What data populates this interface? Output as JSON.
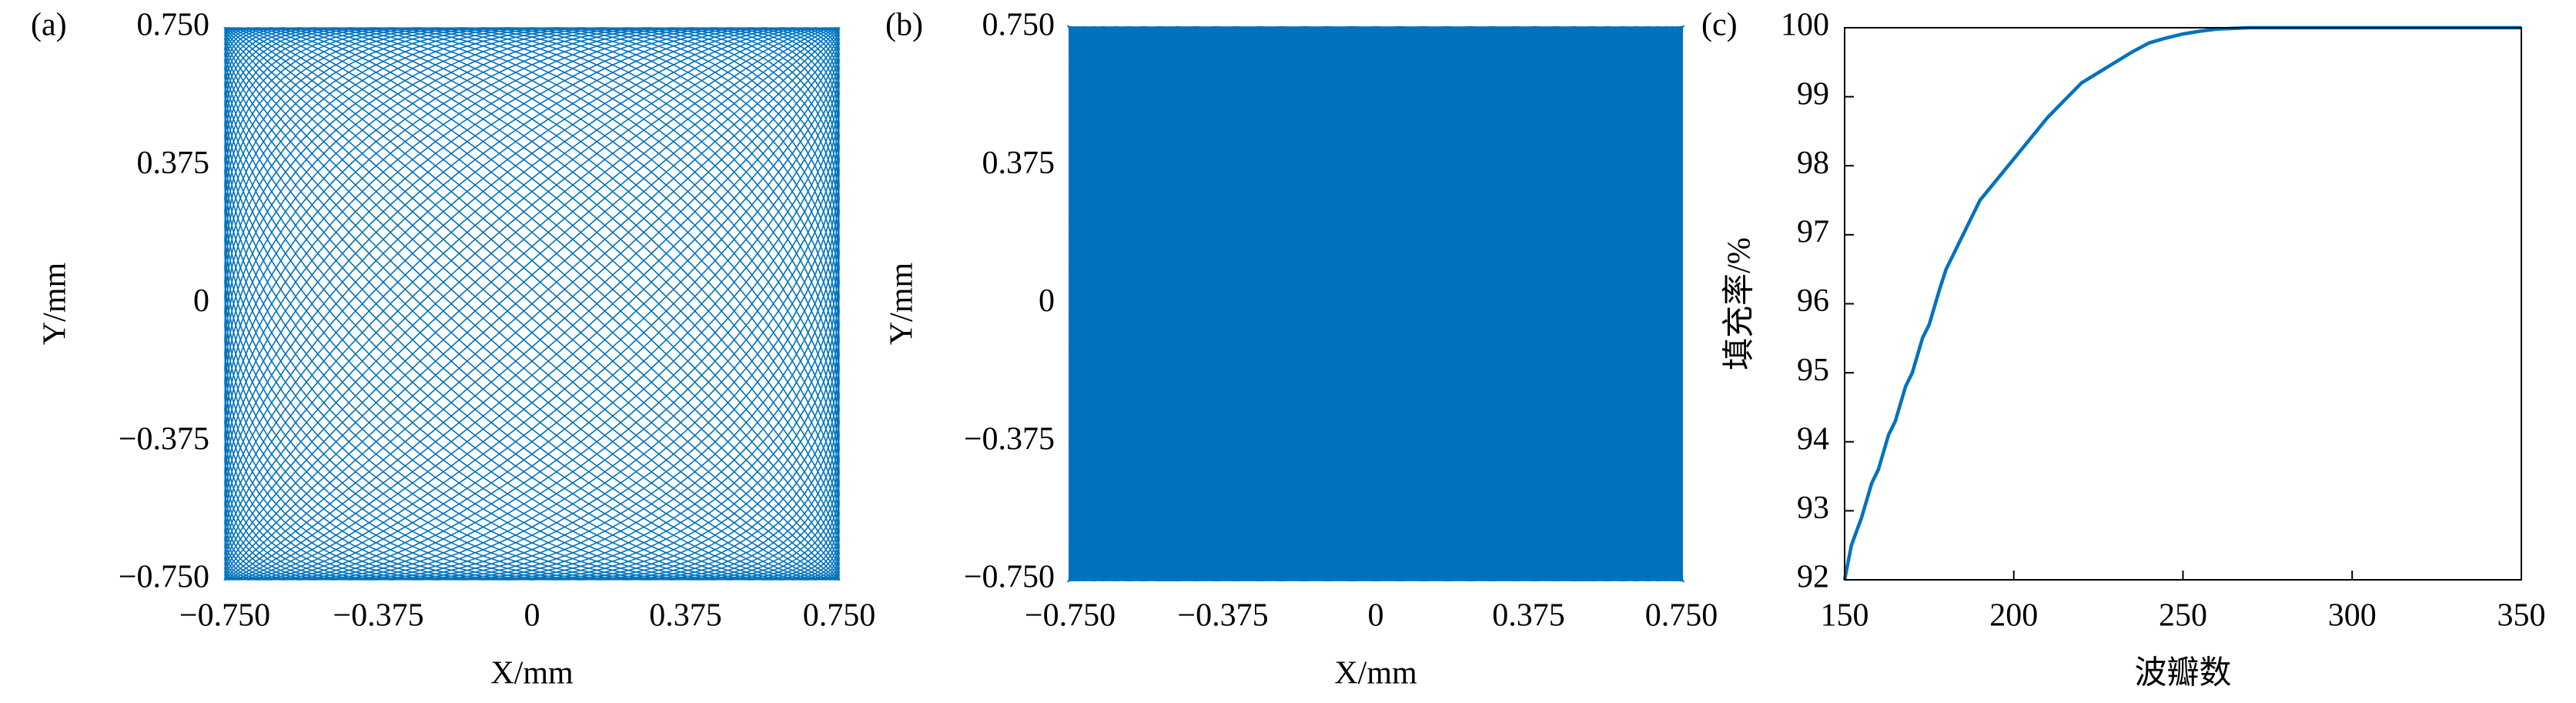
{
  "chart_data": [
    {
      "type": "lissajous",
      "panel_label": "(a)",
      "x_label": "X/mm",
      "y_label": "Y/mm",
      "x_frequency": 60,
      "y_frequency": 59,
      "amplitude": 0.75,
      "color": "#0072bd",
      "xlim": [
        -0.75,
        0.75
      ],
      "ylim": [
        -0.75,
        0.75
      ],
      "xticks": [
        {
          "value": -0.75,
          "label": "−0.750"
        },
        {
          "value": -0.375,
          "label": "−0.375"
        },
        0,
        0.375,
        {
          "value": 0.75,
          "label": "0.750"
        }
      ],
      "yticks": [
        {
          "value": -0.75,
          "label": "−0.750"
        },
        {
          "value": -0.375,
          "label": "−0.375"
        },
        0,
        0.375,
        {
          "value": 0.75,
          "label": "0.750"
        }
      ]
    },
    {
      "type": "lissajous",
      "panel_label": "(b)",
      "x_label": "X/mm",
      "y_label": "Y/mm",
      "x_frequency": 300,
      "y_frequency": 299,
      "amplitude": 0.75,
      "color": "#0072bd",
      "xlim": [
        -0.75,
        0.75
      ],
      "ylim": [
        -0.75,
        0.75
      ],
      "xticks": [
        {
          "value": -0.75,
          "label": "−0.750"
        },
        {
          "value": -0.375,
          "label": "−0.375"
        },
        0,
        0.375,
        {
          "value": 0.75,
          "label": "0.750"
        }
      ],
      "yticks": [
        {
          "value": -0.75,
          "label": "−0.750"
        },
        {
          "value": -0.375,
          "label": "−0.375"
        },
        0,
        0.375,
        {
          "value": 0.75,
          "label": "0.750"
        }
      ]
    },
    {
      "type": "line",
      "panel_label": "(c)",
      "x_label": "波瓣数",
      "y_label": "填充率/%",
      "color": "#0072bd",
      "x": [
        150,
        152,
        155,
        158,
        160,
        163,
        165,
        168,
        170,
        173,
        175,
        178,
        180,
        185,
        190,
        195,
        200,
        205,
        210,
        215,
        220,
        225,
        230,
        235,
        240,
        245,
        250,
        255,
        260,
        265,
        270,
        280,
        290,
        300,
        320,
        350
      ],
      "values": [
        92.0,
        92.5,
        92.9,
        93.4,
        93.6,
        94.1,
        94.3,
        94.8,
        95.0,
        95.5,
        95.7,
        96.2,
        96.5,
        97.0,
        97.5,
        97.8,
        98.1,
        98.4,
        98.7,
        98.95,
        99.2,
        99.35,
        99.5,
        99.65,
        99.78,
        99.85,
        99.91,
        99.95,
        99.98,
        99.99,
        100,
        100,
        100,
        100,
        100,
        100
      ],
      "xlim": [
        150,
        350
      ],
      "ylim": [
        92,
        100
      ],
      "xticks": [
        150,
        200,
        250,
        300,
        350
      ],
      "yticks": [
        92,
        93,
        94,
        95,
        96,
        97,
        98,
        99,
        100
      ]
    }
  ]
}
